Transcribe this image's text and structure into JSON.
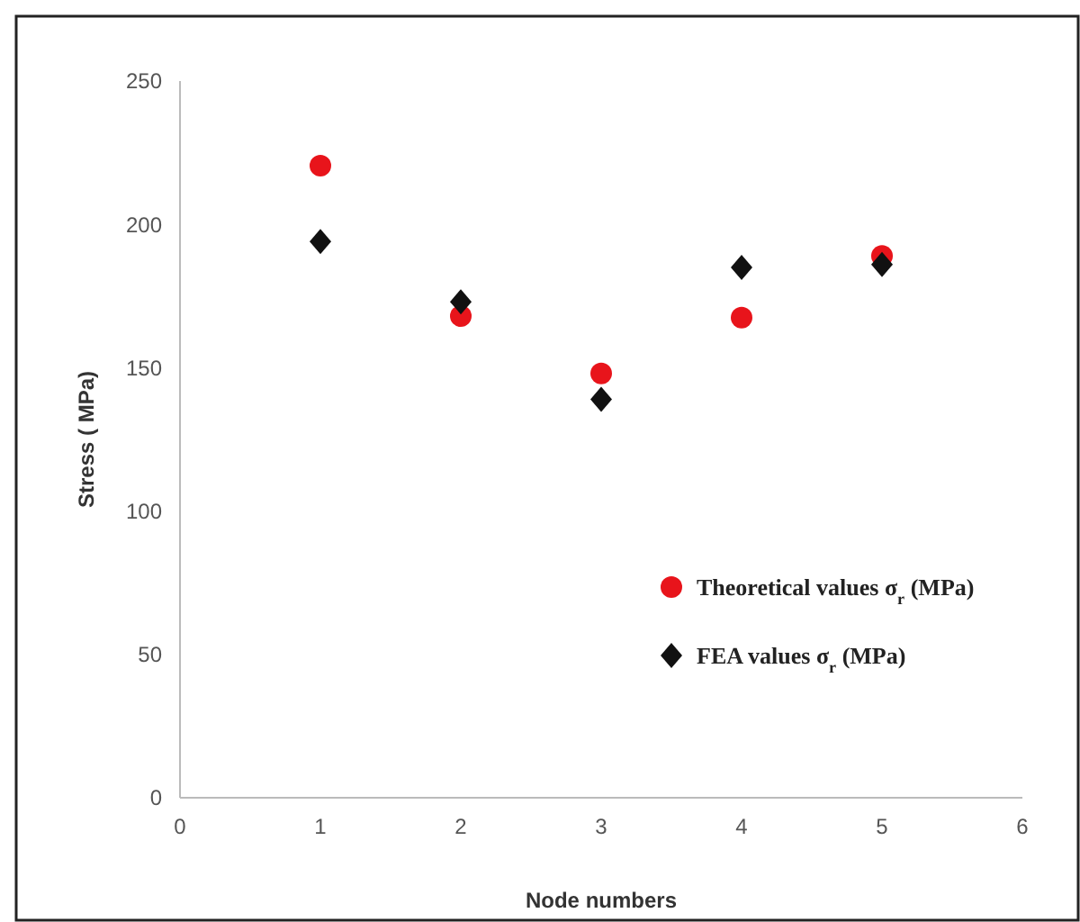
{
  "chart_data": {
    "type": "scatter",
    "xlabel": "Node numbers",
    "ylabel": "Stress ( MPa)",
    "x": [
      1,
      2,
      3,
      4,
      5
    ],
    "xlim": [
      0,
      6
    ],
    "xticks": [
      0,
      1,
      2,
      3,
      4,
      5,
      6
    ],
    "ylim": [
      0,
      250
    ],
    "yticks": [
      0,
      50,
      100,
      150,
      200,
      250
    ],
    "grid": false,
    "legend": "right",
    "series": [
      {
        "name": "Theoretical values σ$_{r}$ (MPa)",
        "color": "#e8141b",
        "marker": "circle",
        "values": [
          220.5,
          168,
          148,
          167.5,
          189
        ]
      },
      {
        "name": "FEA values σ$_{r}$ (MPa)",
        "color": "#111111",
        "marker": "diamond",
        "values": [
          194,
          173,
          139,
          185,
          186
        ]
      }
    ]
  }
}
